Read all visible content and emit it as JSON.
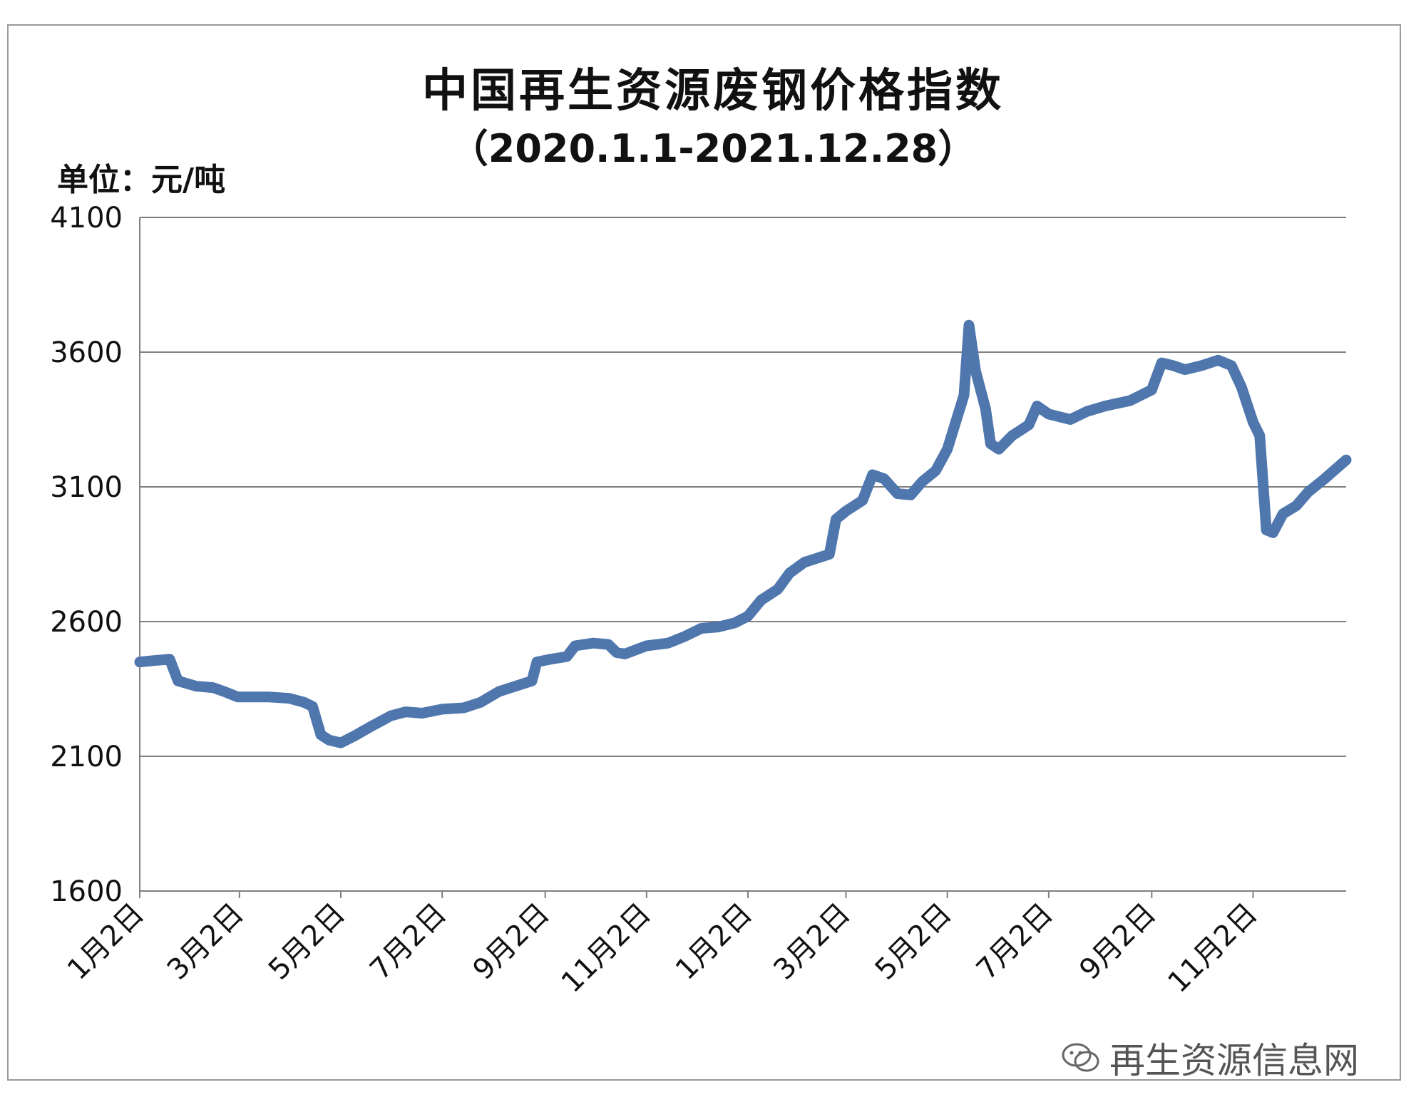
{
  "title": "中国再生资源废钢价格指数",
  "subtitle": "（2020.1.1-2021.12.28）",
  "unit_label": "单位：元/吨",
  "watermark": "再生资源信息网",
  "colors": {
    "line": "#4f76ad",
    "grid": "#7f7f7f",
    "text": "#111111"
  },
  "chart_data": {
    "type": "line",
    "title": "中国再生资源废钢价格指数",
    "subtitle": "（2020.1.1-2021.12.28）",
    "ylabel": "单位：元/吨",
    "ylim": [
      1600,
      4100
    ],
    "yticks": [
      "4100",
      "3600",
      "3100",
      "2600",
      "2100",
      "1600"
    ],
    "xlim": [
      "2020-01-02",
      "2021-12-28"
    ],
    "xticks": [
      {
        "date": "2020-01-02",
        "label": "1月2日"
      },
      {
        "date": "2020-03-02",
        "label": "3月2日"
      },
      {
        "date": "2020-05-02",
        "label": "5月2日"
      },
      {
        "date": "2020-07-02",
        "label": "7月2日"
      },
      {
        "date": "2020-09-02",
        "label": "9月2日"
      },
      {
        "date": "2020-11-02",
        "label": "11月2日"
      },
      {
        "date": "2021-01-02",
        "label": "1月2日"
      },
      {
        "date": "2021-03-02",
        "label": "3月2日"
      },
      {
        "date": "2021-05-02",
        "label": "5月2日"
      },
      {
        "date": "2021-07-02",
        "label": "7月2日"
      },
      {
        "date": "2021-09-02",
        "label": "9月2日"
      },
      {
        "date": "2021-11-02",
        "label": "11月2日"
      }
    ],
    "grid": true,
    "series": [
      {
        "points": [
          [
            "2020-01-02",
            2450
          ],
          [
            "2020-01-10",
            2455
          ],
          [
            "2020-01-20",
            2460
          ],
          [
            "2020-01-25",
            2380
          ],
          [
            "2020-02-05",
            2360
          ],
          [
            "2020-02-15",
            2355
          ],
          [
            "2020-02-22",
            2340
          ],
          [
            "2020-03-01",
            2320
          ],
          [
            "2020-03-20",
            2320
          ],
          [
            "2020-04-01",
            2315
          ],
          [
            "2020-04-10",
            2300
          ],
          [
            "2020-04-15",
            2285
          ],
          [
            "2020-04-20",
            2180
          ],
          [
            "2020-04-25",
            2160
          ],
          [
            "2020-05-02",
            2150
          ],
          [
            "2020-05-10",
            2175
          ],
          [
            "2020-05-20",
            2210
          ],
          [
            "2020-06-01",
            2250
          ],
          [
            "2020-06-10",
            2265
          ],
          [
            "2020-06-20",
            2260
          ],
          [
            "2020-07-02",
            2275
          ],
          [
            "2020-07-15",
            2280
          ],
          [
            "2020-07-25",
            2300
          ],
          [
            "2020-08-05",
            2340
          ],
          [
            "2020-08-15",
            2360
          ],
          [
            "2020-08-25",
            2380
          ],
          [
            "2020-08-28",
            2450
          ],
          [
            "2020-09-05",
            2460
          ],
          [
            "2020-09-15",
            2470
          ],
          [
            "2020-09-20",
            2510
          ],
          [
            "2020-10-01",
            2520
          ],
          [
            "2020-10-10",
            2515
          ],
          [
            "2020-10-15",
            2485
          ],
          [
            "2020-10-20",
            2480
          ],
          [
            "2020-11-02",
            2510
          ],
          [
            "2020-11-15",
            2520
          ],
          [
            "2020-11-25",
            2545
          ],
          [
            "2020-12-05",
            2575
          ],
          [
            "2020-12-15",
            2580
          ],
          [
            "2020-12-25",
            2595
          ],
          [
            "2021-01-02",
            2620
          ],
          [
            "2021-01-10",
            2680
          ],
          [
            "2021-01-20",
            2720
          ],
          [
            "2021-01-27",
            2780
          ],
          [
            "2021-02-05",
            2820
          ],
          [
            "2021-02-15",
            2840
          ],
          [
            "2021-02-20",
            2850
          ],
          [
            "2021-02-24",
            2980
          ],
          [
            "2021-03-02",
            3010
          ],
          [
            "2021-03-12",
            3050
          ],
          [
            "2021-03-18",
            3145
          ],
          [
            "2021-03-25",
            3130
          ],
          [
            "2021-04-02",
            3075
          ],
          [
            "2021-04-10",
            3070
          ],
          [
            "2021-04-17",
            3120
          ],
          [
            "2021-04-25",
            3160
          ],
          [
            "2021-05-02",
            3240
          ],
          [
            "2021-05-12",
            3440
          ],
          [
            "2021-05-15",
            3700
          ],
          [
            "2021-05-19",
            3530
          ],
          [
            "2021-05-25",
            3390
          ],
          [
            "2021-05-28",
            3260
          ],
          [
            "2021-06-02",
            3240
          ],
          [
            "2021-06-10",
            3290
          ],
          [
            "2021-06-20",
            3330
          ],
          [
            "2021-06-25",
            3400
          ],
          [
            "2021-07-02",
            3370
          ],
          [
            "2021-07-15",
            3350
          ],
          [
            "2021-07-25",
            3380
          ],
          [
            "2021-08-05",
            3400
          ],
          [
            "2021-08-20",
            3420
          ],
          [
            "2021-09-02",
            3460
          ],
          [
            "2021-09-08",
            3560
          ],
          [
            "2021-09-15",
            3550
          ],
          [
            "2021-09-22",
            3535
          ],
          [
            "2021-10-02",
            3550
          ],
          [
            "2021-10-12",
            3570
          ],
          [
            "2021-10-20",
            3550
          ],
          [
            "2021-10-26",
            3470
          ],
          [
            "2021-11-02",
            3340
          ],
          [
            "2021-11-06",
            3290
          ],
          [
            "2021-11-10",
            2940
          ],
          [
            "2021-11-14",
            2930
          ],
          [
            "2021-11-20",
            3000
          ],
          [
            "2021-11-28",
            3030
          ],
          [
            "2021-12-05",
            3080
          ],
          [
            "2021-12-15",
            3130
          ],
          [
            "2021-12-28",
            3200
          ]
        ]
      }
    ]
  }
}
